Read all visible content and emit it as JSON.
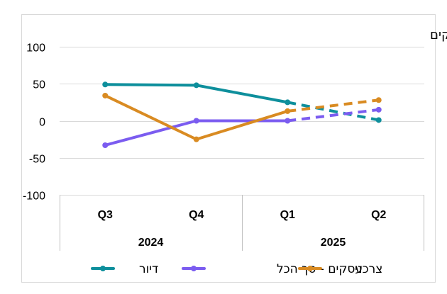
{
  "chart_data": {
    "type": "line",
    "title": "א. משקי בית וסה\"כ עסקים",
    "categories": [
      "Q3",
      "Q4",
      "Q1",
      "Q2"
    ],
    "years": [
      {
        "label": "2024",
        "categories": [
          "Q3",
          "Q4"
        ]
      },
      {
        "label": "2025",
        "categories": [
          "Q1",
          "Q2"
        ]
      }
    ],
    "ylim": [
      -100,
      100
    ],
    "yticks": [
      100,
      50,
      0,
      -50,
      -100
    ],
    "ytick_labels": [
      "100",
      "50",
      "0",
      "-50",
      "-100"
    ],
    "grid": true,
    "legend_position": "bottom",
    "dashed_from_index": 2,
    "series": [
      {
        "name": "דיור",
        "color": "#0e8f9c",
        "values": [
          49,
          48,
          25,
          1
        ]
      },
      {
        "name": "עסקים - סך הכל",
        "color": "#7b5cf0",
        "values": [
          -33,
          0,
          0,
          15
        ]
      },
      {
        "name": "צרכני",
        "color": "#d98b22",
        "values": [
          34,
          -25,
          13,
          28
        ]
      }
    ]
  }
}
